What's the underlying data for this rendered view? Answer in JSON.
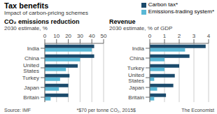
{
  "title": "Tax benefits",
  "subtitle": "Impact of carbon-pricing schemes",
  "annotations": [
    "Source: IMF",
    "*$70 per tonne CO₂, 2015$",
    "The Economist"
  ],
  "chart_data": [
    {
      "type": "bar",
      "orientation": "horizontal",
      "title": "CO₂ emissions reduction",
      "subtitle": "2030 estimate, %",
      "categories": [
        "India",
        "China",
        "United States",
        "Turkey",
        "Japan",
        "Britain"
      ],
      "series": [
        {
          "name": "Carbon tax*",
          "color": "#1b4a6b",
          "values": [
            42,
            42,
            28,
            21,
            20,
            20
          ]
        },
        {
          "name": "Emissions-trading system*",
          "color": "#5ab8d6",
          "values": [
            40,
            30,
            18,
            13,
            12,
            5
          ]
        }
      ],
      "xlim": [
        0,
        50
      ],
      "xticks": [
        0,
        10,
        20,
        30,
        40,
        50
      ],
      "grid": true,
      "legend": "upper right"
    },
    {
      "type": "bar",
      "orientation": "horizontal",
      "title": "Revenue",
      "subtitle": "2030 estimate, % of GDP",
      "categories": [
        "India",
        "China",
        "Turkey",
        "United States",
        "Japan",
        "Britain"
      ],
      "series": [
        {
          "name": "Carbon tax*",
          "color": "#1b4a6b",
          "values": [
            3.8,
            2.7,
            2.0,
            1.7,
            1.6,
            1.1
          ]
        },
        {
          "name": "Emissions-trading system*",
          "color": "#5ab8d6",
          "values": [
            2.4,
            1.0,
            1.0,
            0.3,
            0.5,
            0.3
          ]
        }
      ],
      "xlim": [
        0,
        4
      ],
      "xticks": [
        0,
        1,
        2,
        3,
        4
      ],
      "grid": true,
      "legend": "upper right"
    }
  ]
}
